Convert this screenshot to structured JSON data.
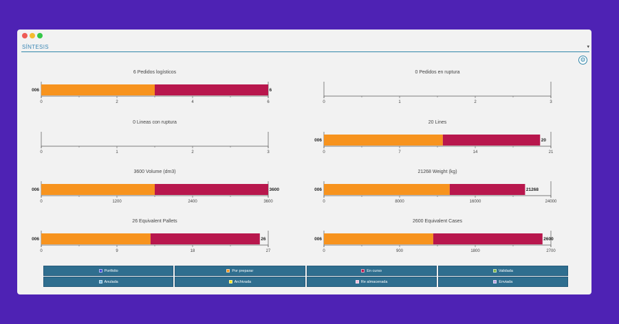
{
  "window": {
    "section_title": "SÍNTESIS",
    "caret": "▾",
    "settings_icon": "⚙"
  },
  "colors": {
    "orange": "#f7931e",
    "crimson": "#b8174d",
    "axis": "#555555",
    "text": "#444444"
  },
  "chart_data": [
    {
      "type": "bar",
      "title": "6 Pedidos logísticos",
      "category": "006",
      "series": [
        {
          "name": "Por preparar",
          "value": 3
        },
        {
          "name": "En curso",
          "value": 3
        }
      ],
      "total_label": "6",
      "ticks": [
        "0",
        "2",
        "4",
        "6"
      ],
      "xlim": [
        0,
        6
      ]
    },
    {
      "type": "bar",
      "title": "0 Pedidos en ruptura",
      "category": "",
      "series": [],
      "total_label": "",
      "ticks": [
        "0",
        "1",
        "2",
        "3"
      ],
      "xlim": [
        0,
        3
      ]
    },
    {
      "type": "bar",
      "title": "0 Lineas con ruptura",
      "category": "",
      "series": [],
      "total_label": "",
      "ticks": [
        "0",
        "1",
        "2",
        "3"
      ],
      "xlim": [
        0,
        3
      ]
    },
    {
      "type": "bar",
      "title": "20 Lines",
      "category": "006",
      "series": [
        {
          "name": "Por preparar",
          "value": 11
        },
        {
          "name": "En curso",
          "value": 9
        }
      ],
      "total_label": "20",
      "ticks": [
        "0",
        "7",
        "14",
        "21"
      ],
      "xlim": [
        0,
        21
      ]
    },
    {
      "type": "bar",
      "title": "3600 Volume (dm3)",
      "category": "006",
      "series": [
        {
          "name": "Por preparar",
          "value": 1800
        },
        {
          "name": "En curso",
          "value": 1800
        }
      ],
      "total_label": "3600",
      "ticks": [
        "0",
        "1200",
        "2400",
        "3600"
      ],
      "xlim": [
        0,
        3600
      ]
    },
    {
      "type": "bar",
      "title": "21268 Weight (kg)",
      "category": "006",
      "series": [
        {
          "name": "Por preparar",
          "value": 13300
        },
        {
          "name": "En curso",
          "value": 7968
        }
      ],
      "total_label": "21268",
      "ticks": [
        "0",
        "8000",
        "16000",
        "24000"
      ],
      "xlim": [
        0,
        24000
      ]
    },
    {
      "type": "bar",
      "title": "26 Equivalent Pallets",
      "category": "006",
      "series": [
        {
          "name": "Por preparar",
          "value": 13
        },
        {
          "name": "En curso",
          "value": 13
        }
      ],
      "total_label": "26",
      "ticks": [
        "0",
        "9",
        "18",
        "27"
      ],
      "xlim": [
        0,
        27
      ]
    },
    {
      "type": "bar",
      "title": "2600 Equivalent Cases",
      "category": "006",
      "series": [
        {
          "name": "Por preparar",
          "value": 1300
        },
        {
          "name": "En curso",
          "value": 1300
        }
      ],
      "total_label": "2600",
      "ticks": [
        "0",
        "900",
        "1800",
        "2700"
      ],
      "xlim": [
        0,
        2700
      ]
    }
  ],
  "legend": [
    {
      "label": "Portfolio",
      "color": "#3b4bd6"
    },
    {
      "label": "Por preparar",
      "color": "#f7931e"
    },
    {
      "label": "En curso",
      "color": "#b8174d"
    },
    {
      "label": "Validada",
      "color": "#7ab648"
    },
    {
      "label": "Anulada",
      "color": "#6fb5e0"
    },
    {
      "label": "Archivada",
      "color": "#f5e21a"
    },
    {
      "label": "Re almacenada",
      "color": "#f3b6d8"
    },
    {
      "label": "Enviada",
      "color": "#b9a1e2"
    }
  ]
}
